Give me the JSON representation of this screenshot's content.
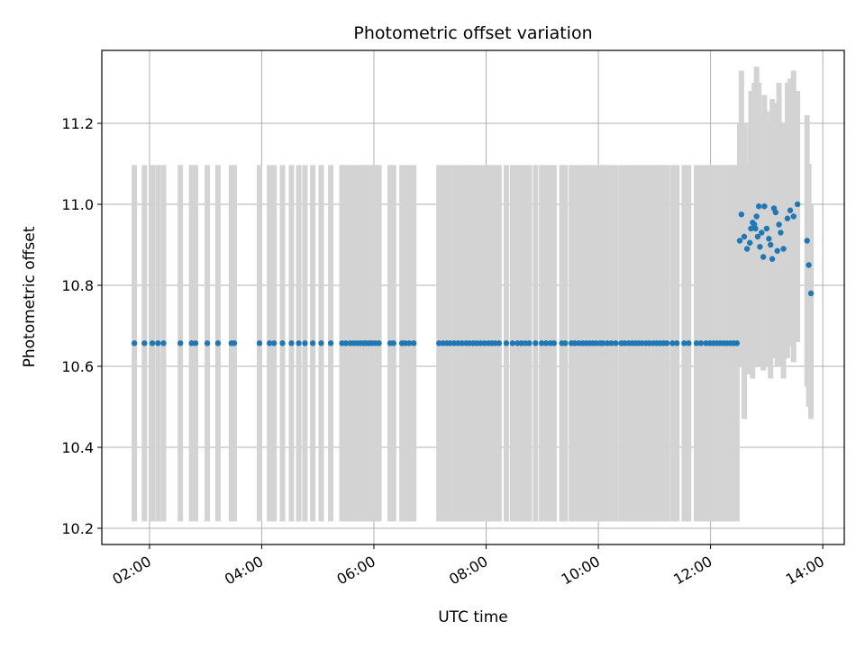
{
  "chart_data": {
    "type": "scatter",
    "title": "Photometric offset variation",
    "xlabel": "UTC time",
    "ylabel": "Photometric offset",
    "x_unit": "hours (UTC)",
    "xlim": [
      "01:09",
      "14:23"
    ],
    "ylim": [
      10.16,
      11.38
    ],
    "x_ticks": [
      {
        "hour": 2,
        "label": "02:00"
      },
      {
        "hour": 4,
        "label": "04:00"
      },
      {
        "hour": 6,
        "label": "06:00"
      },
      {
        "hour": 8,
        "label": "08:00"
      },
      {
        "hour": 10,
        "label": "10:00"
      },
      {
        "hour": 12,
        "label": "12:00"
      },
      {
        "hour": 14,
        "label": "14:00"
      }
    ],
    "y_ticks": [
      {
        "value": 10.2,
        "label": "10.2"
      },
      {
        "value": 10.4,
        "label": "10.4"
      },
      {
        "value": 10.6,
        "label": "10.6"
      },
      {
        "value": 10.8,
        "label": "10.8"
      },
      {
        "value": 11.0,
        "label": "11.0"
      },
      {
        "value": 11.2,
        "label": "11.2"
      }
    ],
    "grid": true,
    "colors": {
      "points": "#1f77b4",
      "error_bars": "#d3d3d3",
      "grid": "#b0b0b0"
    },
    "series": [
      {
        "error_bar": 0.44,
        "x": [
          1.73,
          1.91,
          2.05,
          2.15,
          2.25,
          2.55,
          2.75,
          2.82,
          3.03,
          3.22,
          3.46,
          3.51,
          3.96,
          4.14,
          4.22,
          4.37,
          4.53,
          4.66,
          4.77,
          4.91,
          5.06,
          5.23,
          5.43,
          5.5,
          5.58,
          5.64,
          5.7,
          5.76,
          5.82,
          5.86,
          5.92,
          5.97,
          6.03,
          6.09,
          6.29,
          6.35,
          6.5,
          6.56,
          6.63,
          6.71,
          7.16,
          7.23,
          7.3,
          7.36,
          7.43,
          7.5,
          7.57,
          7.64,
          7.7,
          7.77,
          7.83,
          7.9,
          7.97,
          8.04,
          8.1,
          8.16,
          8.23,
          8.36,
          8.47,
          8.56,
          8.63,
          8.7,
          8.77,
          8.88,
          8.99,
          9.07,
          9.15,
          9.21,
          9.35,
          9.41,
          9.52,
          9.58,
          9.65,
          9.72,
          9.78,
          9.84,
          9.9,
          9.96,
          10.03,
          10.08,
          10.16,
          10.23,
          10.31,
          10.41,
          10.47,
          10.54,
          10.6,
          10.66,
          10.72,
          10.78,
          10.85,
          10.91,
          10.98,
          11.04,
          11.1,
          11.16,
          11.22,
          11.32,
          11.4,
          11.53,
          11.61,
          11.75,
          11.83,
          11.92,
          11.99,
          12.05,
          12.11,
          12.17,
          12.23,
          12.29,
          12.35,
          12.41,
          12.47
        ],
        "y": [
          10.657,
          10.657,
          10.657,
          10.657,
          10.657,
          10.657,
          10.657,
          10.657,
          10.657,
          10.657,
          10.657,
          10.657,
          10.657,
          10.657,
          10.657,
          10.657,
          10.657,
          10.657,
          10.657,
          10.657,
          10.657,
          10.657,
          10.657,
          10.657,
          10.657,
          10.657,
          10.657,
          10.657,
          10.657,
          10.657,
          10.657,
          10.657,
          10.657,
          10.657,
          10.657,
          10.657,
          10.657,
          10.657,
          10.657,
          10.657,
          10.657,
          10.657,
          10.657,
          10.657,
          10.657,
          10.657,
          10.657,
          10.657,
          10.657,
          10.657,
          10.657,
          10.657,
          10.657,
          10.657,
          10.657,
          10.657,
          10.657,
          10.657,
          10.657,
          10.657,
          10.657,
          10.657,
          10.657,
          10.657,
          10.657,
          10.657,
          10.657,
          10.657,
          10.657,
          10.657,
          10.657,
          10.657,
          10.657,
          10.657,
          10.657,
          10.657,
          10.657,
          10.657,
          10.657,
          10.657,
          10.657,
          10.657,
          10.657,
          10.657,
          10.657,
          10.657,
          10.657,
          10.657,
          10.657,
          10.657,
          10.657,
          10.657,
          10.657,
          10.657,
          10.657,
          10.657,
          10.657,
          10.657,
          10.657,
          10.657,
          10.657,
          10.657,
          10.657,
          10.657,
          10.657,
          10.657,
          10.657,
          10.657,
          10.657,
          10.657,
          10.657,
          10.657,
          10.657
        ]
      },
      {
        "x": [
          12.52,
          12.55,
          12.6,
          12.65,
          12.7,
          12.72,
          12.75,
          12.78,
          12.8,
          12.82,
          12.84,
          12.86,
          12.88,
          12.91,
          12.94,
          12.96,
          13.0,
          13.04,
          13.07,
          13.1,
          13.13,
          13.16,
          13.19,
          13.22,
          13.25,
          13.3,
          13.37,
          13.42,
          13.48,
          13.55,
          13.72,
          13.75,
          13.79
        ],
        "y": [
          10.91,
          10.975,
          10.92,
          10.89,
          10.905,
          10.94,
          10.955,
          10.95,
          10.94,
          10.97,
          10.92,
          10.995,
          10.895,
          10.93,
          10.87,
          10.995,
          10.94,
          10.915,
          10.9,
          10.865,
          10.99,
          10.98,
          10.885,
          10.95,
          10.93,
          10.89,
          10.965,
          10.985,
          10.97,
          11.0,
          10.91,
          10.85,
          10.78
        ],
        "error_upper": [
          11.2,
          11.33,
          11.2,
          11.1,
          11.2,
          11.28,
          11.25,
          11.3,
          11.25,
          11.34,
          11.2,
          11.3,
          11.15,
          11.22,
          11.2,
          11.27,
          11.23,
          11.2,
          11.15,
          11.26,
          11.21,
          11.25,
          11.2,
          11.3,
          11.18,
          11.2,
          11.3,
          11.31,
          11.33,
          11.28,
          11.22,
          11.1,
          11.0
        ],
        "error_lower": [
          10.6,
          10.62,
          10.47,
          10.58,
          10.65,
          10.58,
          10.57,
          10.62,
          10.62,
          10.6,
          10.64,
          10.6,
          10.6,
          10.65,
          10.59,
          10.65,
          10.6,
          10.6,
          10.57,
          10.65,
          10.62,
          10.69,
          10.6,
          10.63,
          10.6,
          10.57,
          10.62,
          10.65,
          10.61,
          10.66,
          10.55,
          10.5,
          10.47
        ]
      }
    ]
  }
}
